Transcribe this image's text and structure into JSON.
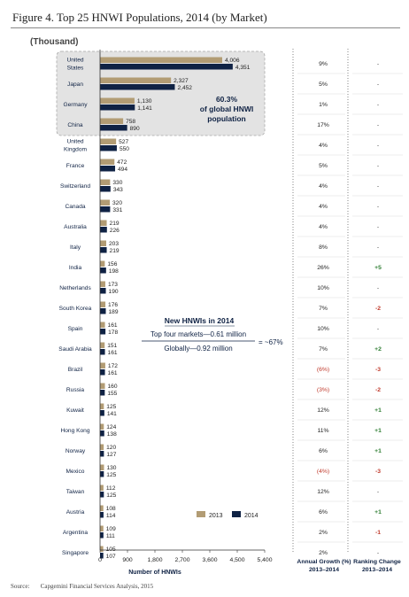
{
  "figure": {
    "title": "Figure 4. Top 25 HNWI Populations, 2014 (by Market)",
    "unit": "(Thousand)",
    "source_label": "Source:",
    "source_text": "Capgemini Financial Services Analysis, 2015"
  },
  "colors": {
    "y2013": "#b29c74",
    "y2014": "#0f2244",
    "negative": "#c0392b",
    "positive": "#2e7d32"
  },
  "chart_data": {
    "type": "bar",
    "orientation": "horizontal",
    "categories": [
      "United States",
      "Japan",
      "Germany",
      "China",
      "United Kingdom",
      "France",
      "Switzerland",
      "Canada",
      "Australia",
      "Italy",
      "India",
      "Netherlands",
      "South Korea",
      "Spain",
      "Saudi Arabia",
      "Brazil",
      "Russia",
      "Kuwait",
      "Hong Kong",
      "Norway",
      "Mexico",
      "Taiwan",
      "Austria",
      "Argentina",
      "Singapore"
    ],
    "series": [
      {
        "name": "2013",
        "values": [
          4006,
          2327,
          1130,
          758,
          527,
          472,
          330,
          320,
          219,
          203,
          156,
          173,
          176,
          161,
          151,
          172,
          160,
          125,
          124,
          120,
          130,
          112,
          108,
          109,
          105
        ]
      },
      {
        "name": "2014",
        "values": [
          4351,
          2452,
          1141,
          890,
          550,
          494,
          343,
          331,
          226,
          219,
          198,
          190,
          189,
          178,
          161,
          161,
          155,
          141,
          138,
          127,
          125,
          125,
          114,
          111,
          107
        ]
      }
    ],
    "value_labels": {
      "2013": [
        "4,006",
        "2,327",
        "1,130",
        "758",
        "527",
        "472",
        "330",
        "320",
        "219",
        "203",
        "156",
        "173",
        "176",
        "161",
        "151",
        "172",
        "160",
        "125",
        "124",
        "120",
        "130",
        "112",
        "108",
        "109",
        "105"
      ],
      "2014": [
        "4,351",
        "2,452",
        "1,141",
        "890",
        "550",
        "494",
        "343",
        "331",
        "226",
        "219",
        "198",
        "190",
        "189",
        "178",
        "161",
        "161",
        "155",
        "141",
        "138",
        "127",
        "125",
        "125",
        "114",
        "111",
        "107"
      ]
    },
    "annual_growth": [
      "9%",
      "5%",
      "1%",
      "17%",
      "4%",
      "5%",
      "4%",
      "4%",
      "4%",
      "8%",
      "26%",
      "10%",
      "7%",
      "10%",
      "7%",
      "(6%)",
      "(3%)",
      "12%",
      "11%",
      "6%",
      "(4%)",
      "12%",
      "6%",
      "2%",
      "2%"
    ],
    "ranking_change": [
      "-",
      "-",
      "-",
      "-",
      "-",
      "-",
      "-",
      "-",
      "-",
      "-",
      "+5",
      "-",
      "-2",
      "-",
      "+2",
      "-3",
      "-2",
      "+1",
      "+1",
      "+1",
      "-3",
      "-",
      "+1",
      "-1",
      "-"
    ],
    "xlim": [
      0,
      5400
    ],
    "xticks": [
      "0",
      "900",
      "1,800",
      "2,700",
      "3,600",
      "4,500",
      "5,400"
    ],
    "xlabel": "Number of HNWIs",
    "growth_header": [
      "Annual Growth (%)",
      "2013–2014"
    ],
    "rank_header": [
      "Ranking Change",
      "2013–2014"
    ],
    "legend": [
      "2013",
      "2014"
    ],
    "legend_position": "bottom-right",
    "highlight": [
      "60.3%",
      "of global HNWI",
      "population"
    ],
    "category_lines": {
      "United States": [
        "United",
        "States"
      ],
      "United Kingdom": [
        "United",
        "Kingdom"
      ]
    },
    "callout": {
      "title": "New HNWIs in 2014",
      "numerator": "Top four markets—0.61 million",
      "denominator": "Globally—0.92 million",
      "result": "= ~67%"
    }
  }
}
